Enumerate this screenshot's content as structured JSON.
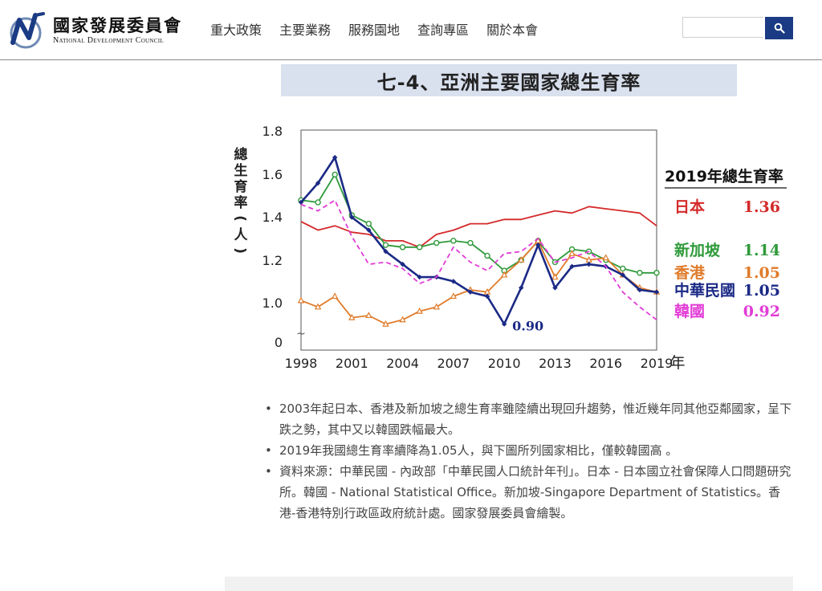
{
  "site": {
    "logo_zh": "國家發展委員會",
    "logo_en": "National Development Council"
  },
  "nav": {
    "items": [
      "重大政策",
      "主要業務",
      "服務園地",
      "查詢專區",
      "關於本會"
    ]
  },
  "search": {
    "placeholder": "",
    "button_icon": "search-icon"
  },
  "page": {
    "title": "七-4、亞洲主要國家總生育率"
  },
  "chart_data": {
    "type": "line",
    "title": "",
    "ylabel": "總生育率(人)",
    "xlabel": "年",
    "ylim": [
      0.85,
      1.8
    ],
    "y_ticks": [
      "0",
      "1.0",
      "1.2",
      "1.4",
      "1.6",
      "1.8"
    ],
    "x_ticks": [
      "1998",
      "2001",
      "2004",
      "2007",
      "2010",
      "2013",
      "2016",
      "2019"
    ],
    "x": [
      1998,
      1999,
      2000,
      2001,
      2002,
      2003,
      2004,
      2005,
      2006,
      2007,
      2008,
      2009,
      2010,
      2011,
      2012,
      2013,
      2014,
      2015,
      2016,
      2017,
      2018,
      2019
    ],
    "legend_title": "2019年總生育率",
    "annotation": "0.90",
    "axis_break": "~",
    "series": [
      {
        "name": "日本",
        "color": "#d42a2a",
        "marker": "none",
        "dash": "solid",
        "value_label": "1.36",
        "values": [
          1.38,
          1.34,
          1.36,
          1.33,
          1.32,
          1.29,
          1.29,
          1.26,
          1.32,
          1.34,
          1.37,
          1.37,
          1.39,
          1.39,
          1.41,
          1.43,
          1.42,
          1.45,
          1.44,
          1.43,
          1.42,
          1.36
        ]
      },
      {
        "name": "新加坡",
        "color": "#2f9a3a",
        "marker": "circle",
        "dash": "solid",
        "value_label": "1.14",
        "values": [
          1.48,
          1.47,
          1.6,
          1.41,
          1.37,
          1.27,
          1.26,
          1.26,
          1.28,
          1.29,
          1.28,
          1.22,
          1.15,
          1.2,
          1.29,
          1.19,
          1.25,
          1.24,
          1.2,
          1.16,
          1.14,
          1.14
        ]
      },
      {
        "name": "香港",
        "color": "#e07b2a",
        "marker": "triangle",
        "dash": "solid",
        "value_label": "1.05",
        "values": [
          1.01,
          0.98,
          1.03,
          0.93,
          0.94,
          0.9,
          0.92,
          0.96,
          0.98,
          1.03,
          1.06,
          1.05,
          1.13,
          1.2,
          1.29,
          1.12,
          1.23,
          1.2,
          1.21,
          1.13,
          1.07,
          1.05
        ]
      },
      {
        "name": "中華民國",
        "color": "#1b2a86",
        "marker": "diamond",
        "dash": "solid",
        "value_label": "1.05",
        "values": [
          1.47,
          1.56,
          1.68,
          1.4,
          1.34,
          1.24,
          1.18,
          1.12,
          1.12,
          1.1,
          1.05,
          1.03,
          0.9,
          1.07,
          1.27,
          1.07,
          1.17,
          1.18,
          1.17,
          1.13,
          1.06,
          1.05
        ]
      },
      {
        "name": "韓國",
        "color": "#e23bd6",
        "marker": "none",
        "dash": "dashed",
        "value_label": "0.92",
        "values": [
          1.46,
          1.43,
          1.48,
          1.31,
          1.18,
          1.19,
          1.16,
          1.09,
          1.12,
          1.26,
          1.19,
          1.15,
          1.23,
          1.24,
          1.3,
          1.19,
          1.21,
          1.24,
          1.17,
          1.05,
          0.98,
          0.92
        ]
      }
    ]
  },
  "notes": [
    "2003年起日本、香港及新加坡之總生育率雖陸續出現回升趨勢，惟近幾年同其他亞鄰國家，呈下跌之勢，其中又以韓國跌幅最大。",
    "2019年我國總生育率續降為1.05人，與下圖所列國家相比，僅較韓國高 。",
    "資料來源：中華民國 - 內政部「中華民國人口統計年刊」。日本 - 日本國立社會保障人口問題研究所。韓國 - National Statistical Office。新加坡-Singapore Department of Statistics。香港-香港特別行政區政府統計處。國家發展委員會繪製。"
  ]
}
